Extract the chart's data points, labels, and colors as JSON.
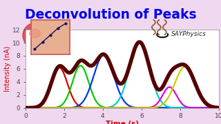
{
  "title": "Deconvolution of Peaks",
  "title_color": "#0000ee",
  "xlabel": "Time (s)",
  "xlabel_color": "#cc0000",
  "ylabel": "Intensity (nA)",
  "ylabel_color": "#cc0000",
  "xlim": [
    0,
    10
  ],
  "ylim": [
    0,
    12
  ],
  "xticks": [
    0,
    2,
    4,
    6,
    8,
    10
  ],
  "yticks": [
    0,
    2,
    4,
    6,
    8,
    10,
    12
  ],
  "bg_color": "#f0d8f0",
  "plot_bg": "#ffffff",
  "composite_color": "#550000",
  "composite_lw": 4.0,
  "peaks": [
    {
      "amp": 6.2,
      "mu": 1.75,
      "sigma": 0.42,
      "color": "#dd0000"
    },
    {
      "amp": 6.5,
      "mu": 2.85,
      "sigma": 0.42,
      "color": "#00cc00"
    },
    {
      "amp": 8.1,
      "mu": 4.05,
      "sigma": 0.52,
      "color": "#0033ff"
    },
    {
      "amp": 10.1,
      "mu": 5.9,
      "sigma": 0.52,
      "color": "#00cccc"
    },
    {
      "amp": 3.2,
      "mu": 7.45,
      "sigma": 0.36,
      "color": "#dd00dd"
    },
    {
      "amp": 6.3,
      "mu": 8.25,
      "sigma": 0.52,
      "color": "#cccc00"
    }
  ],
  "say_text": "SAYPhysics",
  "say_color": "#222222",
  "steam_color": "#8B5020",
  "title_fontsize": 13.5,
  "label_fontsize": 7.5,
  "tick_fontsize": 6.5
}
